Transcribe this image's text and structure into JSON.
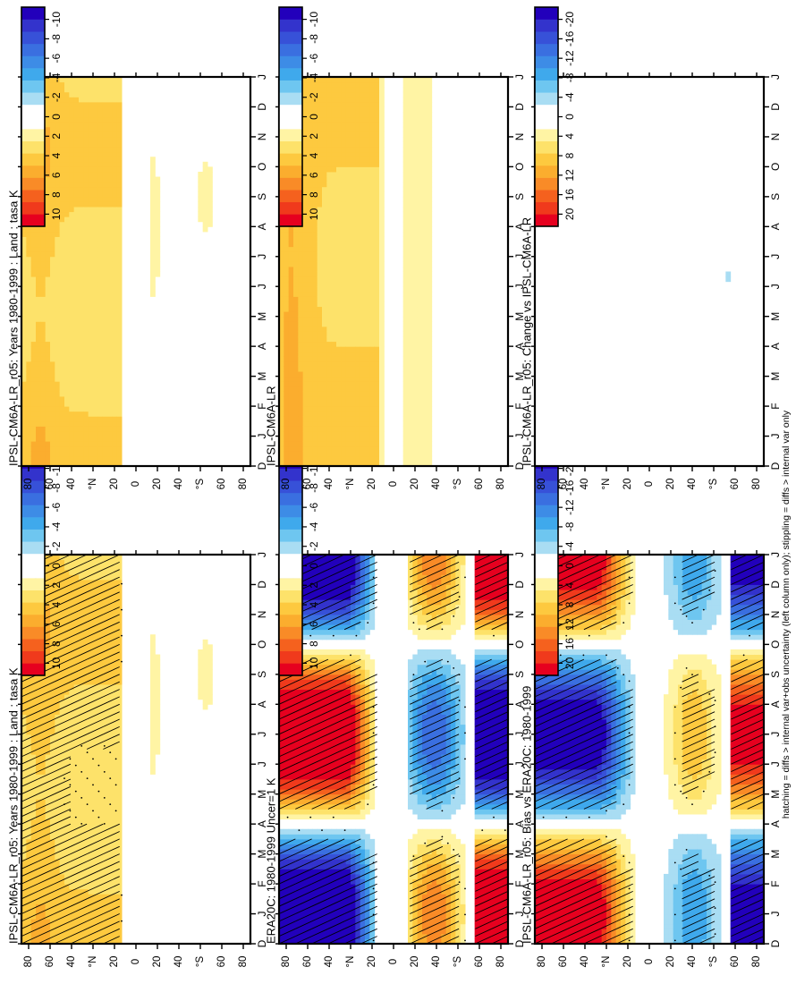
{
  "footnote": "hatching = diffs > internal var+obs uncertainty (left column only); stippling = diffs > internal var only",
  "chart_data": [
    {
      "type": "heatmap",
      "panel": "left-top",
      "title": "IPSL-CM6A-LR_r05: Years 1980-1999 : Land : tasa K",
      "x_ticks": [
        "D",
        "J",
        "F",
        "M",
        "A",
        "M",
        "J",
        "J",
        "A",
        "S",
        "O",
        "N",
        "D",
        "J"
      ],
      "y_ticks": [
        "80",
        "60",
        "40",
        "°N",
        "20",
        "0",
        "20",
        "40",
        "°S",
        "60",
        "80"
      ],
      "colorbar_labels": [
        "10",
        "8",
        "6",
        "4",
        "2",
        "0",
        "-2",
        "-4",
        "-6",
        "-8",
        "-10"
      ],
      "pattern": "mod_anom",
      "hatching": true,
      "stippling": true
    },
    {
      "type": "heatmap",
      "panel": "right-top",
      "title": "IPSL-CM6A-LR_r05: Years 1980-1999 : Land : tasa K",
      "x_ticks": [
        "D",
        "J",
        "F",
        "M",
        "A",
        "M",
        "J",
        "J",
        "A",
        "S",
        "O",
        "N",
        "D",
        "J"
      ],
      "y_ticks": [
        "80",
        "60",
        "40",
        "°N",
        "20",
        "0",
        "20",
        "40",
        "°S",
        "60",
        "80"
      ],
      "colorbar_labels": [
        "10",
        "8",
        "6",
        "4",
        "2",
        "0",
        "-2",
        "-4",
        "-6",
        "-8",
        "-10"
      ],
      "pattern": "mod_anom",
      "hatching": false,
      "stippling": false
    },
    {
      "type": "heatmap",
      "panel": "left-middle",
      "title": "ERA20C: 1980-1999 Uncer=1 K",
      "x_ticks": [
        "D",
        "J",
        "F",
        "M",
        "A",
        "M",
        "J",
        "J",
        "A",
        "S",
        "O",
        "N",
        "D",
        "J"
      ],
      "y_ticks": [
        "80",
        "60",
        "40",
        "°N",
        "20",
        "0",
        "20",
        "40",
        "°S",
        "60",
        "80"
      ],
      "colorbar_labels": [
        "10",
        "8",
        "6",
        "4",
        "2",
        "0",
        "-2",
        "-4",
        "-6",
        "-8",
        "-10"
      ],
      "pattern": "era",
      "hatching": true,
      "stippling": true
    },
    {
      "type": "heatmap",
      "panel": "right-middle",
      "title": "IPSL-CM6A-LR",
      "x_ticks": [
        "D",
        "J",
        "F",
        "M",
        "A",
        "M",
        "J",
        "J",
        "A",
        "S",
        "O",
        "N",
        "D",
        "J"
      ],
      "y_ticks": [
        "80",
        "60",
        "40",
        "°N",
        "20",
        "0",
        "20",
        "40",
        "°S",
        "60",
        "80"
      ],
      "colorbar_labels": [
        "10",
        "8",
        "6",
        "4",
        "2",
        "0",
        "-2",
        "-4",
        "-6",
        "-8",
        "-10"
      ],
      "pattern": "mod_clim",
      "hatching": false,
      "stippling": false
    },
    {
      "type": "heatmap",
      "panel": "left-bottom",
      "title": "IPSL-CM6A-LR_r05: Bias vs ERA20C: 1980-1999",
      "x_ticks": [
        "D",
        "J",
        "F",
        "M",
        "A",
        "M",
        "J",
        "J",
        "A",
        "S",
        "O",
        "N",
        "D",
        "J"
      ],
      "y_ticks": [
        "80",
        "60",
        "40",
        "°N",
        "20",
        "0",
        "20",
        "40",
        "°S",
        "60",
        "80"
      ],
      "colorbar_labels": [
        "20",
        "16",
        "12",
        "8",
        "4",
        "0",
        "-4",
        "-8",
        "-12",
        "-16",
        "-20"
      ],
      "pattern": "bias",
      "hatching": true,
      "stippling": true
    },
    {
      "type": "heatmap",
      "panel": "right-bottom",
      "title": "IPSL-CM6A-LR_r05: Change vs IPSL-CM6A-LR",
      "x_ticks": [
        "D",
        "J",
        "F",
        "M",
        "A",
        "M",
        "J",
        "J",
        "A",
        "S",
        "O",
        "N",
        "D",
        "J"
      ],
      "y_ticks": [
        "80",
        "60",
        "40",
        "°N",
        "20",
        "0",
        "20",
        "40",
        "°S",
        "60",
        "80"
      ],
      "colorbar_labels": [
        "20",
        "16",
        "12",
        "8",
        "4",
        "0",
        "-4",
        "-8",
        "-12",
        "-16",
        "-20"
      ],
      "pattern": "change",
      "hatching": false,
      "stippling": false
    }
  ]
}
